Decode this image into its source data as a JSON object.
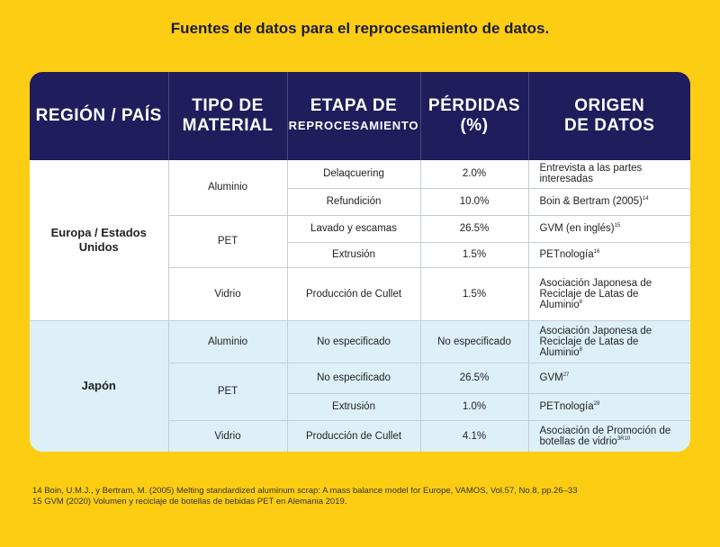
{
  "title": "Fuentes de datos para el reprocesamiento de datos.",
  "headers": {
    "region": "REGIÓN / PAÍS",
    "tipo_line1": "TIPO DE",
    "tipo_line2": "MATERIAL",
    "etapa_line1": "ETAPA DE",
    "etapa_line2": "REPROCESAMIENTO",
    "perdidas_line1": "PÉRDIDAS",
    "perdidas_line2": "(%)",
    "origen_line1": "ORIGEN",
    "origen_line2": "DE DATOS"
  },
  "europe": {
    "region": "Europa / Estados Unidos",
    "aluminio": "Aluminio",
    "pet": "PET",
    "vidrio": "Vidrio",
    "rows": [
      {
        "stage": "Delaqcuering",
        "loss": "2.0%",
        "source": "Entrevista a las partes interesadas",
        "sup": ""
      },
      {
        "stage": "Refundición",
        "loss": "10.0%",
        "source": "Boin & Bertram (2005)",
        "sup": "14"
      },
      {
        "stage": "Lavado y escamas",
        "loss": "26.5%",
        "source": "GVM (en inglés)",
        "sup": "15"
      },
      {
        "stage": "Extrusión",
        "loss": "1.5%",
        "source": "PETnología",
        "sup": "16"
      },
      {
        "stage": "Producción de Cullet",
        "loss": "1.5%",
        "source": "Asociación Japonesa de Reciclaje de Latas de Aluminio",
        "sup": "8"
      }
    ]
  },
  "japan": {
    "region": "Japón",
    "aluminio": "Aluminio",
    "pet": "PET",
    "vidrio": "Vidrio",
    "rows": [
      {
        "stage": "No especificado",
        "loss": "No especificado",
        "source": "Asociación Japonesa de Reciclaje de Latas de Aluminio",
        "sup": "8"
      },
      {
        "stage": "No especificado",
        "loss": "26.5%",
        "source": "GVM",
        "sup": "27"
      },
      {
        "stage": "Extrusión",
        "loss": "1.0%",
        "source": "PETnología",
        "sup": "28"
      },
      {
        "stage": "Producción de Cullet",
        "loss": "4.1%",
        "source": "Asociación de Promoción de botellas de vidrio",
        "sup": "3R10"
      }
    ]
  },
  "footnotes": [
    "14  Boin, U.M.J., y Bertram, M. (2005) Melting standardized aluminum scrap: A mass balance model for Europe, VAMOS, Vol.57, No.8, pp.26–33",
    "15  GVM (2020) Volumen y reciclaje de botellas de bebidas PET en Alemania 2019."
  ]
}
